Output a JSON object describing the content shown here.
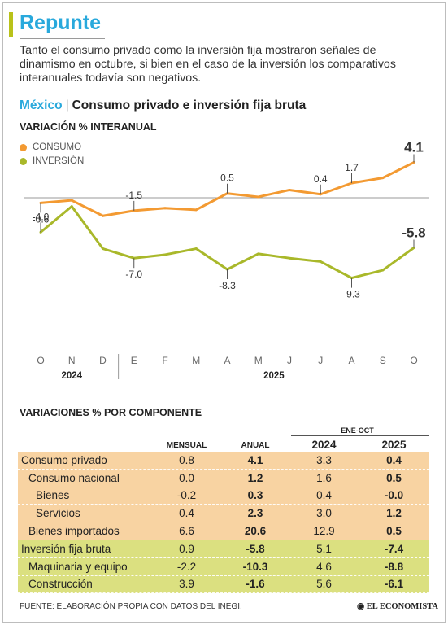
{
  "title": "Repunte",
  "intro": "Tanto el consumo privado como la inversión fija mostraron señales de dinamismo en octubre, si bien en el caso de la inversión los comparativos interanuales todavía son negativos.",
  "subtitle_country": "México",
  "subtitle_sep": "|",
  "subtitle_text": "Consumo privado e inversión fija bruta",
  "chart_heading": "VARIACIÓN % INTERANUAL",
  "legend": [
    {
      "label": "CONSUMO",
      "color": "#f39a32"
    },
    {
      "label": "INVERSIÓN",
      "color": "#a9b82a"
    }
  ],
  "chart_data": {
    "type": "line",
    "ylabel": "Variación % interanual",
    "x": [
      "O",
      "N",
      "D",
      "E",
      "F",
      "M",
      "A",
      "M",
      "J",
      "J",
      "A",
      "S",
      "O"
    ],
    "year_labels": [
      {
        "label": "2024",
        "start": 0,
        "end": 2
      },
      {
        "label": "2025",
        "start": 3,
        "end": 12
      }
    ],
    "series": [
      {
        "name": "CONSUMO",
        "color": "#f39a32",
        "values": [
          -0.6,
          -0.3,
          -2.1,
          -1.5,
          -1.2,
          -1.4,
          0.5,
          0.1,
          0.9,
          0.4,
          1.7,
          2.3,
          4.1
        ],
        "labels": [
          {
            "i": 0,
            "text": "-0.6"
          },
          {
            "i": 3,
            "text": "-1.5"
          },
          {
            "i": 6,
            "text": "0.5"
          },
          {
            "i": 9,
            "text": "0.4"
          },
          {
            "i": 10,
            "text": "1.7"
          },
          {
            "i": 12,
            "text": "4.1"
          }
        ]
      },
      {
        "name": "INVERSIÓN",
        "color": "#a9b82a",
        "values": [
          -4.0,
          -1.0,
          -5.9,
          -7.0,
          -6.6,
          -5.9,
          -8.3,
          -6.5,
          -7.0,
          -7.4,
          -9.3,
          -8.4,
          -5.8
        ],
        "labels": [
          {
            "i": 0,
            "text": "-4.0"
          },
          {
            "i": 3,
            "text": "-7.0"
          },
          {
            "i": 6,
            "text": "-8.3"
          },
          {
            "i": 10,
            "text": "-9.3"
          },
          {
            "i": 12,
            "text": "-5.8"
          }
        ]
      }
    ],
    "ylim": [
      -10,
      5
    ],
    "zero_line": true
  },
  "table_heading": "VARIACIONES % POR COMPONENTE",
  "table": {
    "group_header": "ENE-OCT",
    "columns": [
      "MENSUAL",
      "ANUAL",
      "2024",
      "2025"
    ],
    "rows": [
      {
        "label": "Consumo privado",
        "indent": 0,
        "group": "consumo",
        "values": [
          "0.8",
          "4.1",
          "3.3",
          "0.4"
        ]
      },
      {
        "label": "Consumo nacional",
        "indent": 1,
        "group": "consumo",
        "values": [
          "0.0",
          "1.2",
          "1.6",
          "0.5"
        ]
      },
      {
        "label": "Bienes",
        "indent": 2,
        "group": "consumo",
        "values": [
          "-0.2",
          "0.3",
          "0.4",
          "-0.0"
        ]
      },
      {
        "label": "Servicios",
        "indent": 2,
        "group": "consumo",
        "values": [
          "0.4",
          "2.3",
          "3.0",
          "1.2"
        ]
      },
      {
        "label": "Bienes importados",
        "indent": 1,
        "group": "consumo",
        "values": [
          "6.6",
          "20.6",
          "12.9",
          "0.5"
        ]
      },
      {
        "label": "Inversión fija bruta",
        "indent": 0,
        "group": "inversion",
        "values": [
          "0.9",
          "-5.8",
          "5.1",
          "-7.4"
        ]
      },
      {
        "label": "Maquinaria y equipo",
        "indent": 1,
        "group": "inversion",
        "values": [
          "-2.2",
          "-10.3",
          "4.6",
          "-8.8"
        ]
      },
      {
        "label": "Construcción",
        "indent": 1,
        "group": "inversion",
        "values": [
          "3.9",
          "-1.6",
          "5.6",
          "-6.1"
        ]
      }
    ]
  },
  "footer": "FUENTE: ELABORACIÓN PROPIA CON DATOS DEL INEGI.",
  "logo": "EL ECONOMISTA"
}
